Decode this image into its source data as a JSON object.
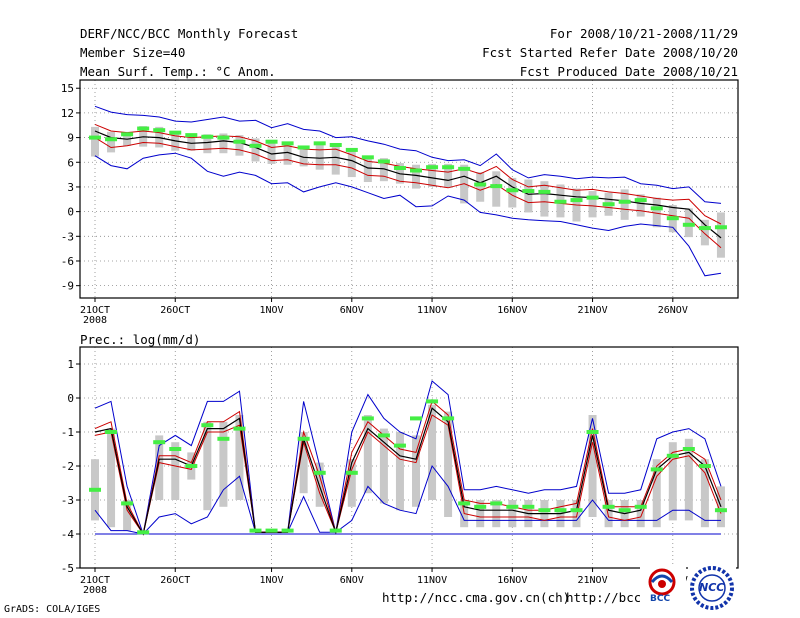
{
  "header": {
    "title": "DERF/NCC/BCC Monthly Forecast",
    "member_size": "Member Size=40",
    "variable": "Mean Surf. Temp.: °C Anom.",
    "period": "For 2008/10/21-2008/11/29",
    "started": "Fcst Started Refer Date 2008/10/20",
    "produced": "Fcst Produced Date 2008/10/21"
  },
  "footer": {
    "grads": "GrADS: COLA/IGES",
    "url1": "http://ncc.cma.gov.cn(ch)",
    "url2": "http://bcc.c",
    "logo1_text": "BCC",
    "logo2_text": "NCC"
  },
  "colors": {
    "envelope": "#0000cc",
    "mean": "#000000",
    "spread": "#cc0000",
    "bar": "#c8c8c8",
    "observed": "#44ee44"
  },
  "chart_data": [
    {
      "type": "line",
      "title": "Mean Surf. Temp.: °C Anom.",
      "x_tick_labels": [
        "21OCT",
        "26OCT",
        "1NOV",
        "6NOV",
        "11NOV",
        "16NOV",
        "21NOV",
        "26NOV"
      ],
      "x_tick_days": [
        1,
        6,
        12,
        17,
        22,
        27,
        32,
        37
      ],
      "x_year_label": "2008",
      "ylim": [
        -10.5,
        16
      ],
      "y_ticks": [
        -9,
        -6,
        -3,
        0,
        3,
        6,
        9,
        12,
        15
      ],
      "days": [
        1,
        2,
        3,
        4,
        5,
        6,
        7,
        8,
        9,
        10,
        11,
        12,
        13,
        14,
        15,
        16,
        17,
        18,
        19,
        20,
        21,
        22,
        23,
        24,
        25,
        26,
        27,
        28,
        29,
        30,
        31,
        32,
        33,
        34,
        35,
        36,
        37,
        38,
        39,
        40
      ],
      "series": [
        {
          "name": "max",
          "values": [
            12.8,
            12.1,
            11.8,
            11.7,
            11.5,
            11.0,
            10.9,
            11.2,
            11.5,
            11.0,
            11.1,
            10.2,
            10.7,
            10.0,
            9.8,
            9.0,
            9.1,
            8.6,
            8.2,
            7.6,
            7.4,
            6.6,
            6.2,
            6.3,
            5.6,
            7.0,
            5.1,
            4.1,
            4.5,
            4.3,
            4.0,
            4.2,
            4.1,
            4.2,
            3.4,
            3.2,
            2.8,
            3.0,
            1.2,
            1.0
          ]
        },
        {
          "name": "upper",
          "values": [
            10.6,
            9.8,
            9.6,
            9.8,
            9.6,
            9.2,
            9.0,
            9.1,
            9.2,
            9.1,
            8.6,
            7.8,
            8.0,
            7.6,
            7.5,
            7.6,
            6.9,
            6.1,
            5.9,
            5.5,
            5.2,
            5.0,
            4.8,
            5.2,
            4.6,
            5.5,
            3.9,
            3.0,
            3.2,
            2.9,
            2.6,
            2.7,
            2.4,
            2.2,
            1.9,
            1.6,
            1.4,
            1.5,
            -0.5,
            -1.5
          ]
        },
        {
          "name": "mean",
          "values": [
            9.8,
            9.0,
            8.8,
            9.1,
            9.0,
            8.6,
            8.3,
            8.4,
            8.6,
            8.4,
            7.8,
            7.0,
            7.2,
            6.6,
            6.5,
            6.6,
            6.2,
            5.3,
            5.2,
            4.6,
            4.4,
            4.1,
            3.8,
            4.3,
            3.5,
            4.3,
            3.0,
            2.1,
            2.2,
            2.0,
            1.8,
            1.7,
            1.5,
            1.3,
            1.0,
            0.8,
            0.5,
            0.3,
            -1.6,
            -3.2
          ]
        },
        {
          "name": "lower",
          "values": [
            9.0,
            7.8,
            8.0,
            8.4,
            8.3,
            7.9,
            7.5,
            7.6,
            7.7,
            7.5,
            7.0,
            6.2,
            6.3,
            5.8,
            5.7,
            5.7,
            5.3,
            4.4,
            4.3,
            3.7,
            3.5,
            3.2,
            2.9,
            3.4,
            2.6,
            3.3,
            2.0,
            1.1,
            1.2,
            1.0,
            0.8,
            0.7,
            0.5,
            0.3,
            0.1,
            -0.2,
            -0.5,
            -0.8,
            -2.7,
            -4.4
          ]
        },
        {
          "name": "min",
          "values": [
            6.8,
            5.6,
            5.2,
            6.5,
            6.9,
            7.1,
            6.5,
            4.9,
            4.3,
            4.8,
            4.4,
            3.4,
            3.5,
            2.4,
            3.0,
            3.5,
            3.0,
            2.3,
            1.6,
            2.0,
            0.6,
            0.7,
            1.9,
            1.4,
            -0.1,
            -0.4,
            -0.8,
            -1.0,
            -1.1,
            -1.2,
            -1.6,
            -2.0,
            -2.3,
            -1.8,
            -1.5,
            -1.7,
            -1.9,
            -4.2,
            -7.8,
            -7.5
          ]
        },
        {
          "name": "observed",
          "values": [
            9.0,
            8.8,
            9.4,
            10.1,
            9.9,
            9.6,
            9.3,
            9.1,
            9.0,
            8.5,
            8.0,
            8.5,
            8.3,
            7.8,
            8.3,
            8.1,
            7.5,
            6.6,
            6.1,
            5.3,
            5.0,
            5.4,
            5.4,
            5.2,
            3.3,
            3.1,
            2.6,
            2.5,
            2.4,
            1.2,
            1.4,
            1.7,
            0.9,
            1.2,
            1.4,
            0.4,
            -0.8,
            -1.6,
            -2.0,
            -1.9
          ]
        },
        {
          "name": "bar_high",
          "values": [
            10.3,
            9.7,
            9.7,
            10.4,
            10.3,
            9.8,
            9.5,
            9.4,
            9.5,
            9.3,
            8.9,
            8.3,
            8.5,
            8.0,
            8.4,
            8.3,
            7.5,
            6.8,
            6.5,
            5.9,
            5.7,
            5.8,
            5.8,
            5.7,
            4.8,
            4.9,
            4.1,
            3.9,
            3.7,
            3.3,
            2.8,
            2.5,
            2.3,
            2.7,
            2.1,
            1.7,
            0.8,
            0.4,
            -1.0,
            -0.1
          ]
        },
        {
          "name": "bar_low",
          "values": [
            6.7,
            7.2,
            8.0,
            7.9,
            7.8,
            7.4,
            7.4,
            7.1,
            7.1,
            6.8,
            6.1,
            5.8,
            5.7,
            5.5,
            5.1,
            4.5,
            4.2,
            3.6,
            3.7,
            3.4,
            2.8,
            3.0,
            2.9,
            1.0,
            1.2,
            0.6,
            0.5,
            -0.1,
            -0.6,
            -0.7,
            -1.2,
            -0.7,
            -0.5,
            -1.0,
            -0.6,
            -1.9,
            -2.5,
            -3.1,
            -4.1,
            -5.6
          ]
        }
      ]
    },
    {
      "type": "line",
      "title": "Prec.: log(mm/d)",
      "x_tick_labels": [
        "21OCT",
        "26OCT",
        "1NOV",
        "6NOV",
        "11NOV",
        "16NOV",
        "21NOV",
        "26NOV"
      ],
      "x_tick_days": [
        1,
        6,
        12,
        17,
        22,
        27,
        32,
        37
      ],
      "x_year_label": "2008",
      "ylim": [
        -5,
        1.5
      ],
      "y_ticks": [
        -5,
        -4,
        -3,
        -2,
        -1,
        0,
        1
      ],
      "days": [
        1,
        2,
        3,
        4,
        5,
        6,
        7,
        8,
        9,
        10,
        11,
        12,
        13,
        14,
        15,
        16,
        17,
        18,
        19,
        20,
        21,
        22,
        23,
        24,
        25,
        26,
        27,
        28,
        29,
        30,
        31,
        32,
        33,
        34,
        35,
        36,
        37,
        38,
        39,
        40
      ],
      "series": [
        {
          "name": "max",
          "values": [
            -0.3,
            -0.1,
            -2.6,
            -4.0,
            -1.4,
            -1.1,
            -1.4,
            -0.1,
            -0.1,
            0.2,
            -3.95,
            -3.95,
            -3.95,
            -0.1,
            -2.0,
            -3.95,
            -1.0,
            0.1,
            -0.6,
            -1.0,
            -1.2,
            0.5,
            0.1,
            -2.7,
            -2.7,
            -2.6,
            -2.7,
            -2.8,
            -2.7,
            -2.7,
            -2.6,
            -0.6,
            -2.8,
            -2.8,
            -2.7,
            -1.2,
            -1.0,
            -0.9,
            -1.2,
            -2.6
          ]
        },
        {
          "name": "upper",
          "values": [
            -0.9,
            -0.7,
            -3.1,
            -4.0,
            -1.7,
            -1.7,
            -1.9,
            -0.7,
            -0.7,
            -0.4,
            -3.95,
            -3.95,
            -3.95,
            -1.0,
            -2.3,
            -3.95,
            -1.6,
            -0.7,
            -1.1,
            -1.5,
            -1.6,
            -0.1,
            -0.5,
            -3.0,
            -3.1,
            -3.1,
            -3.2,
            -3.3,
            -3.3,
            -3.2,
            -3.1,
            -0.9,
            -3.2,
            -3.2,
            -3.2,
            -2.0,
            -1.6,
            -1.5,
            -1.8,
            -3.0
          ]
        },
        {
          "name": "mean",
          "values": [
            -1.0,
            -0.9,
            -3.2,
            -4.0,
            -1.8,
            -1.8,
            -2.0,
            -0.9,
            -0.9,
            -0.6,
            -3.95,
            -3.95,
            -3.95,
            -1.2,
            -2.6,
            -3.95,
            -1.9,
            -0.9,
            -1.3,
            -1.7,
            -1.8,
            -0.3,
            -0.7,
            -3.2,
            -3.3,
            -3.3,
            -3.3,
            -3.4,
            -3.4,
            -3.4,
            -3.3,
            -1.1,
            -3.3,
            -3.4,
            -3.3,
            -2.1,
            -1.7,
            -1.6,
            -2.0,
            -3.2
          ]
        },
        {
          "name": "lower",
          "values": [
            -1.1,
            -1.0,
            -3.3,
            -4.0,
            -1.9,
            -2.0,
            -2.1,
            -1.0,
            -1.0,
            -0.8,
            -3.95,
            -3.95,
            -3.95,
            -1.3,
            -2.8,
            -3.95,
            -2.1,
            -1.0,
            -1.4,
            -1.8,
            -1.9,
            -0.5,
            -0.8,
            -3.4,
            -3.5,
            -3.5,
            -3.5,
            -3.5,
            -3.6,
            -3.5,
            -3.5,
            -1.3,
            -3.5,
            -3.6,
            -3.5,
            -2.3,
            -1.8,
            -1.7,
            -2.2,
            -3.4
          ]
        },
        {
          "name": "min",
          "values": [
            -3.3,
            -3.9,
            -3.9,
            -4.0,
            -3.5,
            -3.4,
            -3.7,
            -3.5,
            -2.7,
            -2.3,
            -3.95,
            -3.95,
            -3.95,
            -2.9,
            -3.95,
            -3.95,
            -3.6,
            -2.6,
            -3.1,
            -3.3,
            -3.4,
            -2.0,
            -2.6,
            -3.6,
            -3.6,
            -3.6,
            -3.6,
            -3.6,
            -3.6,
            -3.6,
            -3.6,
            -3.0,
            -3.6,
            -3.6,
            -3.6,
            -3.6,
            -3.3,
            -3.3,
            -3.6,
            -3.6
          ]
        },
        {
          "name": "observed",
          "values": [
            -2.7,
            -1.0,
            -3.1,
            -3.95,
            -1.3,
            -1.5,
            -2.0,
            -0.8,
            -1.2,
            -0.9,
            -3.9,
            -3.9,
            -3.9,
            -1.2,
            -2.2,
            -3.9,
            -2.2,
            -0.6,
            -1.1,
            -1.4,
            -0.6,
            -0.1,
            -0.6,
            -3.1,
            -3.2,
            -3.1,
            -3.2,
            -3.2,
            -3.3,
            -3.3,
            -3.3,
            -1.0,
            -3.2,
            -3.3,
            -3.2,
            -2.1,
            -1.7,
            -1.5,
            -2.0,
            -3.3
          ]
        },
        {
          "name": "bar_high",
          "values": [
            -1.8,
            -0.9,
            -3.0,
            -3.9,
            -1.1,
            -1.3,
            -1.6,
            -0.7,
            -0.7,
            -0.5,
            -3.9,
            -3.9,
            -3.9,
            -1.0,
            -1.9,
            -3.9,
            -1.8,
            -0.5,
            -0.9,
            -1.0,
            -1.1,
            -0.2,
            -0.4,
            -3.0,
            -3.0,
            -3.0,
            -3.0,
            -3.0,
            -3.0,
            -3.0,
            -3.0,
            -0.5,
            -3.0,
            -3.0,
            -3.0,
            -1.8,
            -1.3,
            -1.2,
            -1.8,
            -2.6
          ]
        },
        {
          "name": "bar_low",
          "values": [
            -3.6,
            -3.8,
            -3.9,
            -4.0,
            -3.0,
            -3.0,
            -2.4,
            -3.3,
            -3.2,
            -3.0,
            -3.95,
            -3.95,
            -3.95,
            -2.8,
            -3.2,
            -3.95,
            -3.2,
            -2.8,
            -3.1,
            -3.3,
            -3.2,
            -3.0,
            -3.5,
            -3.8,
            -3.8,
            -3.8,
            -3.8,
            -3.8,
            -3.8,
            -3.8,
            -3.8,
            -3.5,
            -3.8,
            -3.8,
            -3.8,
            -3.8,
            -3.6,
            -3.6,
            -3.8,
            -3.8
          ]
        },
        {
          "name": "baseline",
          "values": [
            -4,
            -4,
            -4,
            -4,
            -4,
            -4,
            -4,
            -4,
            -4,
            -4,
            -4,
            -4,
            -4,
            -4,
            -4,
            -4,
            -4,
            -4,
            -4,
            -4,
            -4,
            -4,
            -4,
            -4,
            -4,
            -4,
            -4,
            -4,
            -4,
            -4,
            -4,
            -4,
            -4,
            -4,
            -4,
            -4,
            -4,
            -4,
            -4,
            -4
          ]
        }
      ]
    }
  ],
  "prec_label": "Prec.: log(mm/d)"
}
